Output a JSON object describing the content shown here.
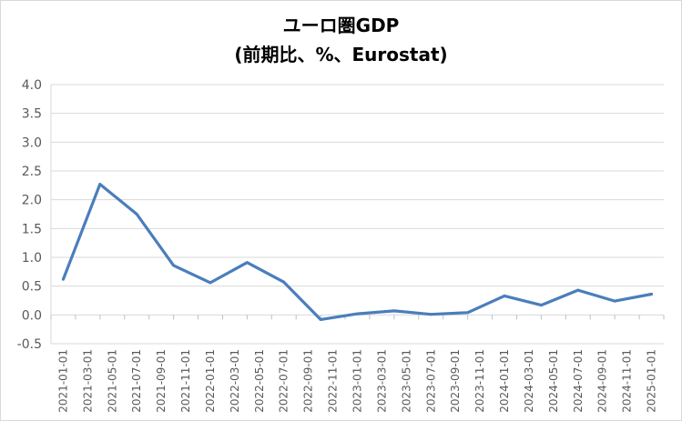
{
  "chart_data": {
    "type": "line",
    "title": "ユーロ圏GDP",
    "subtitle": "(前期比、%、Eurostat)",
    "xlabel": "",
    "ylabel": "",
    "ylim": [
      -0.5,
      4.0
    ],
    "yticks": [
      "4.0",
      "3.5",
      "3.0",
      "2.5",
      "2.0",
      "1.5",
      "1.0",
      "0.5",
      "0.0",
      "-0.5"
    ],
    "ytick_values": [
      4.0,
      3.5,
      3.0,
      2.5,
      2.0,
      1.5,
      1.0,
      0.5,
      0.0,
      -0.5
    ],
    "grid": true,
    "line_color": "#4a7ebb",
    "categories": [
      "2021-01-01",
      "2021-03-01",
      "2021-05-01",
      "2021-07-01",
      "2021-09-01",
      "2021-11-01",
      "2022-01-01",
      "2022-03-01",
      "2022-05-01",
      "2022-07-01",
      "2022-09-01",
      "2022-11-01",
      "2023-01-01",
      "2023-03-01",
      "2023-05-01",
      "2023-07-01",
      "2023-09-01",
      "2023-11-01",
      "2024-01-01",
      "2024-03-01",
      "2024-05-01",
      "2024-07-01",
      "2024-09-01",
      "2024-11-01",
      "2025-01-01"
    ],
    "x": [
      "2021-01-01",
      "2021-04-01",
      "2021-07-01",
      "2021-10-01",
      "2022-01-01",
      "2022-04-01",
      "2022-07-01",
      "2022-10-01",
      "2023-01-01",
      "2023-04-01",
      "2023-07-01",
      "2023-10-01",
      "2024-01-01",
      "2024-04-01",
      "2024-07-01",
      "2024-10-01",
      "2025-01-01"
    ],
    "values": [
      0.62,
      2.27,
      1.75,
      0.86,
      0.56,
      0.91,
      0.57,
      -0.08,
      0.02,
      0.07,
      0.01,
      0.04,
      0.33,
      0.17,
      0.43,
      0.24,
      0.36
    ]
  }
}
